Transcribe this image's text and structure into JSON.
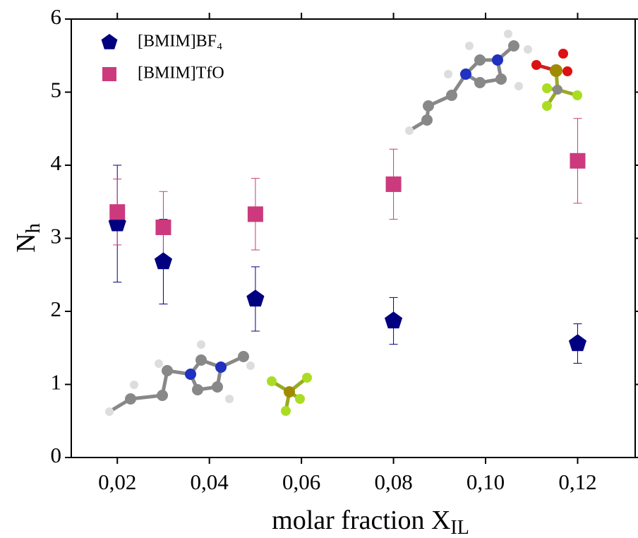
{
  "chart_data": {
    "type": "scatter",
    "xlabel": "molar fraction X",
    "xlabel_subscript": "IL",
    "ylabel": "N",
    "ylabel_subscript": "h",
    "x": [
      0.02,
      0.03,
      0.05,
      0.08,
      0.12
    ],
    "series": [
      {
        "name": "[BMIM]BF₄",
        "color": "#000080",
        "marker": "pentagon",
        "values": [
          3.2,
          2.68,
          2.17,
          1.87,
          1.56
        ],
        "errors": [
          0.8,
          0.58,
          0.44,
          0.32,
          0.27
        ]
      },
      {
        "name": "[BMIM]TfO",
        "color": "#cc3a7d",
        "marker": "square",
        "values": [
          3.36,
          3.15,
          3.33,
          3.74,
          4.06
        ],
        "errors": [
          0.45,
          0.49,
          0.49,
          0.48,
          0.58
        ]
      }
    ],
    "xlim": [
      0.01,
      0.1325
    ],
    "ylim": [
      0,
      6
    ],
    "xticks": [
      {
        "value": 0.02,
        "label": "0,02"
      },
      {
        "value": 0.04,
        "label": "0,04"
      },
      {
        "value": 0.06,
        "label": "0,06"
      },
      {
        "value": 0.08,
        "label": "0,08"
      },
      {
        "value": 0.1,
        "label": "0,10"
      },
      {
        "value": 0.12,
        "label": "0,12"
      }
    ],
    "yticks": [
      0,
      1,
      2,
      3,
      4,
      5,
      6
    ],
    "legend": "upper left"
  }
}
